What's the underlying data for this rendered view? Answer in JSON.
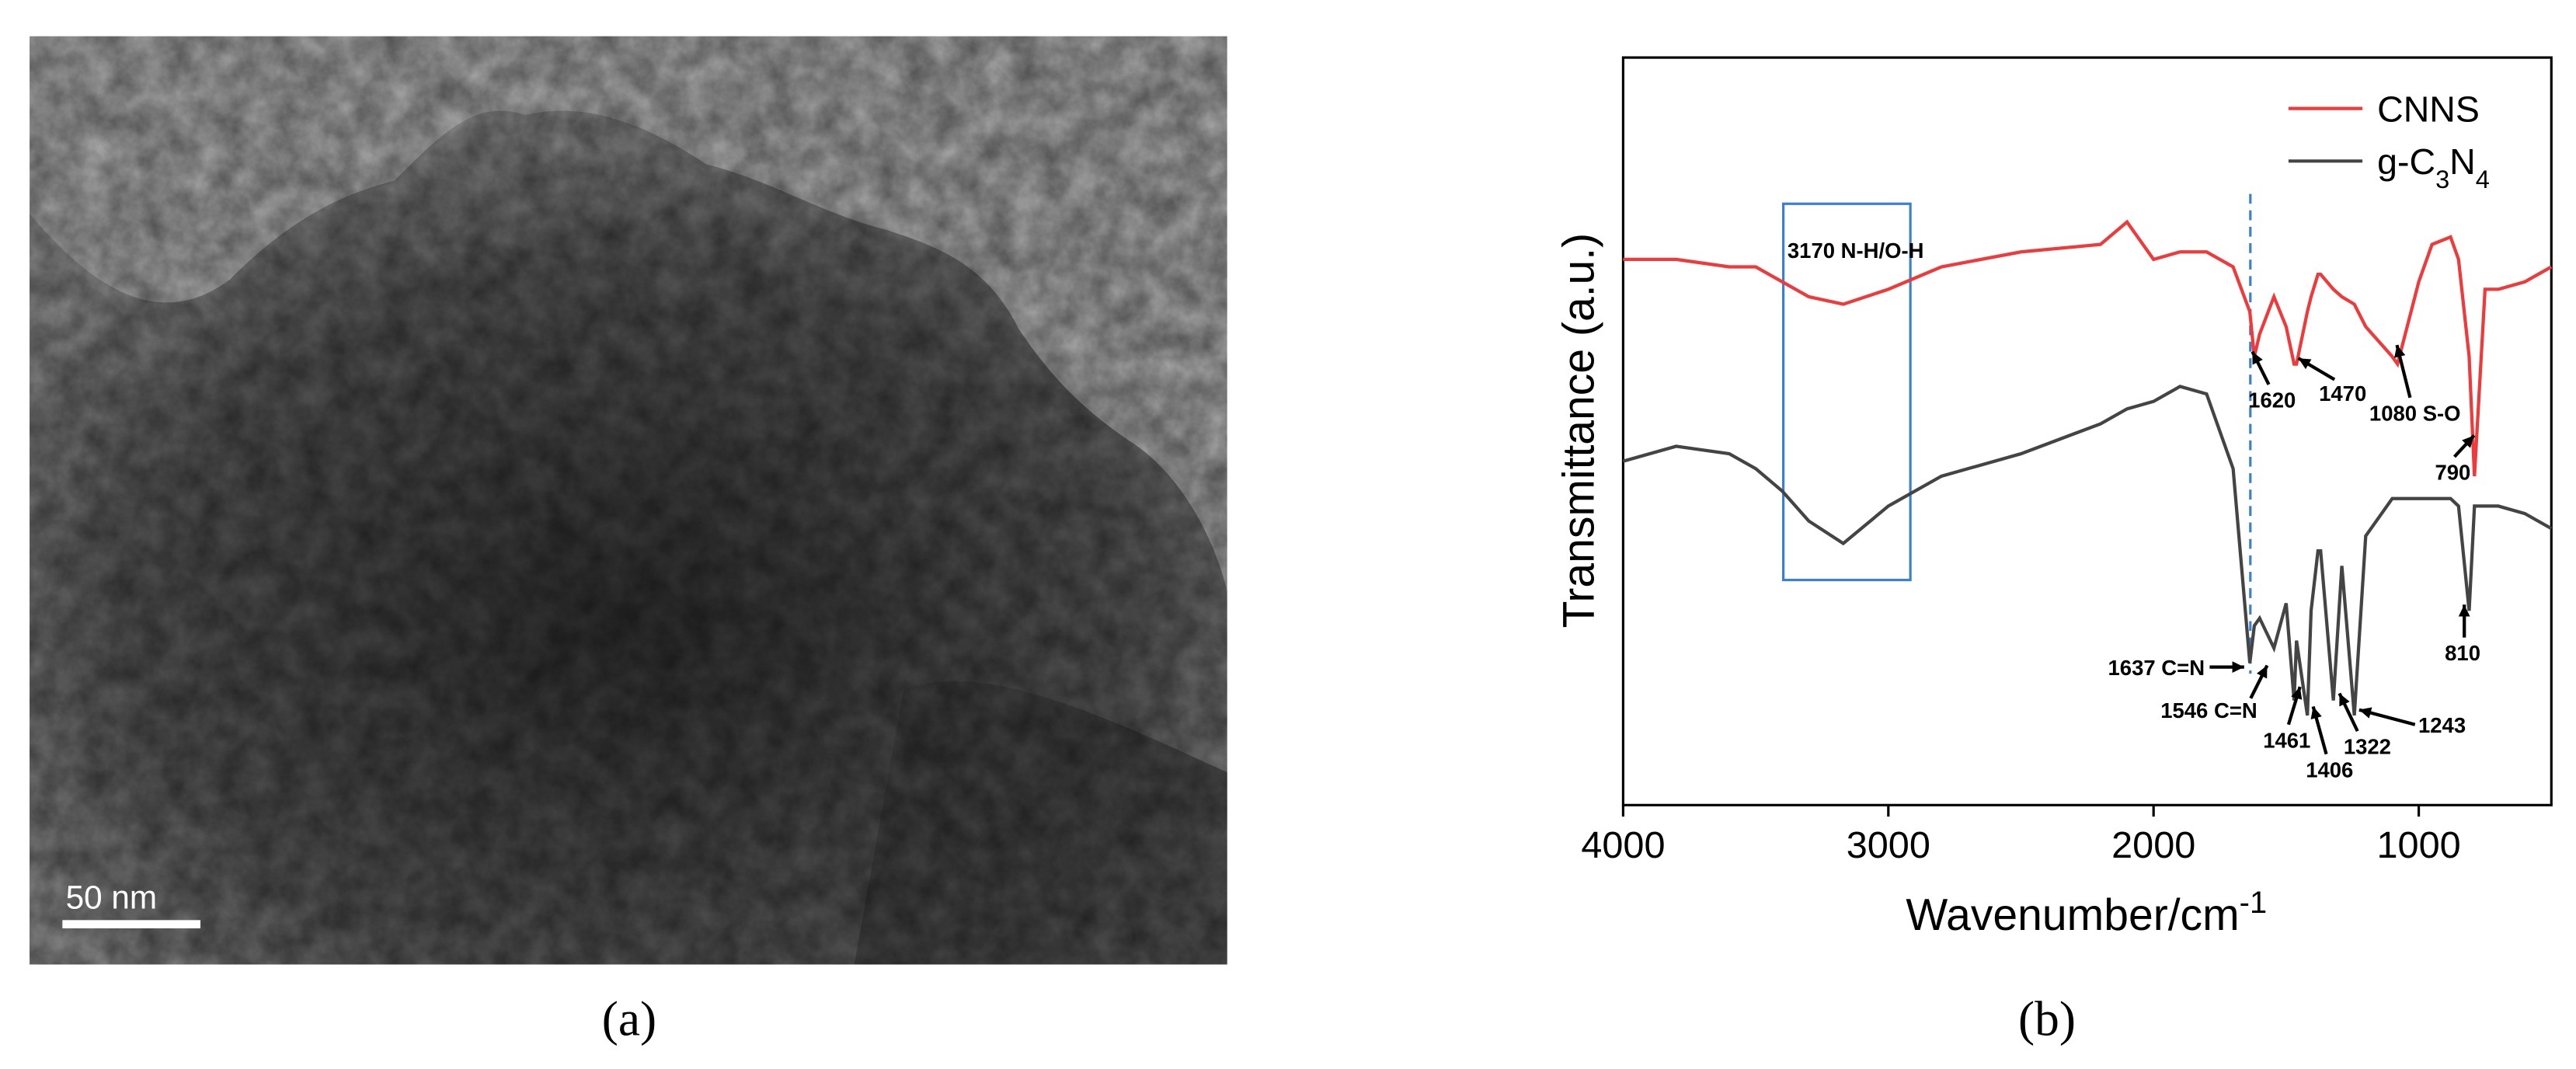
{
  "panel_a": {
    "scale_bar": "50 nm",
    "caption": "(a)"
  },
  "chart_data": {
    "type": "line",
    "caption": "(b)",
    "x_label": "Wavenumber/cm-1",
    "y_label": "Transmittance (a.u.)",
    "xlim": [
      4000,
      500
    ],
    "xticks": [
      4000,
      3000,
      2000,
      1000
    ],
    "ylim": [
      0,
      100
    ],
    "x": [
      4000,
      3800,
      3600,
      3500,
      3400,
      3300,
      3170,
      3000,
      2800,
      2500,
      2200,
      2100,
      2000,
      1900,
      1800,
      1700,
      1637,
      1620,
      1600,
      1546,
      1500,
      1470,
      1461,
      1420,
      1406,
      1380,
      1370,
      1322,
      1290,
      1243,
      1200,
      1100,
      1080,
      1000,
      950,
      880,
      850,
      810,
      790,
      750,
      700,
      600,
      500
    ],
    "series": [
      {
        "name": "CNNS",
        "color": "#ee3a3a",
        "values": [
          73,
          73,
          72,
          72,
          70,
          68,
          67,
          69,
          72,
          74,
          75,
          78,
          73,
          74,
          74,
          72,
          66,
          60,
          63,
          68,
          64,
          59,
          59,
          66,
          68,
          71,
          71,
          69,
          68,
          67,
          64,
          60,
          59,
          70,
          75,
          76,
          73,
          60,
          44,
          69,
          69,
          70,
          72
        ]
      },
      {
        "name": "g-C3N4",
        "color": "#444444",
        "values": [
          46,
          48,
          47,
          45,
          42,
          38,
          35,
          40,
          44,
          47,
          51,
          53,
          54,
          56,
          55,
          45,
          19,
          24,
          25,
          21,
          27,
          14,
          22,
          12,
          26,
          34,
          34,
          14,
          32,
          12,
          36,
          41,
          41,
          41,
          41,
          41,
          40,
          26,
          40,
          40,
          40,
          39,
          37
        ]
      }
    ],
    "annotations": [
      "3170 N-H/O-H",
      "1620",
      "1470",
      "1080 S-O",
      "790",
      "810",
      "1637 C=N",
      "1546 C=N",
      "1461",
      "1406",
      "1322",
      "1243"
    ]
  }
}
